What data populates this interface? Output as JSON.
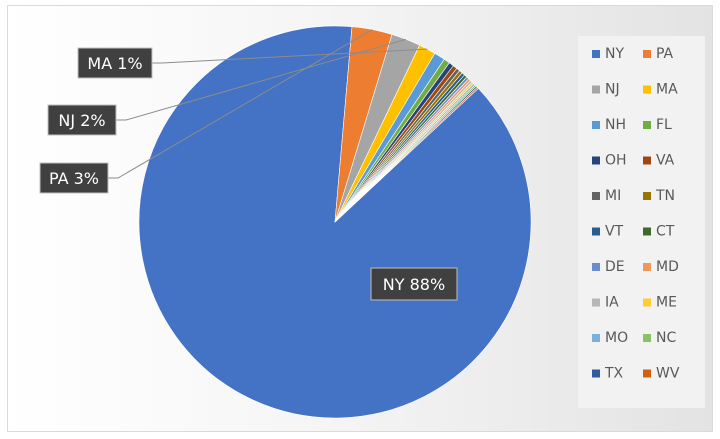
{
  "chart_data": {
    "type": "pie",
    "title": "",
    "categories": [
      "NY",
      "PA",
      "NJ",
      "MA",
      "NH",
      "FL",
      "OH",
      "VA",
      "MI",
      "TN",
      "VT",
      "CT",
      "DE",
      "MD",
      "IA",
      "ME",
      "MO",
      "NC",
      "TX",
      "WV"
    ],
    "values": [
      88.0,
      3.3,
      2.4,
      1.4,
      0.9,
      0.5,
      0.4,
      0.35,
      0.3,
      0.27,
      0.25,
      0.24,
      0.22,
      0.2,
      0.19,
      0.17,
      0.15,
      0.14,
      0.13,
      0.12
    ],
    "colors": [
      "#4472c4",
      "#ed7d31",
      "#a5a5a5",
      "#ffc000",
      "#5b9bd5",
      "#70ad47",
      "#264478",
      "#9e480e",
      "#636363",
      "#997300",
      "#255e91",
      "#43682b",
      "#698ed0",
      "#f1975a",
      "#b7b7b7",
      "#ffcd33",
      "#7cafdd",
      "#8cc168",
      "#335aa1",
      "#d26012"
    ],
    "data_labels": [
      {
        "text": "NY 88%",
        "category": "NY"
      },
      {
        "text": "PA 3%",
        "category": "PA"
      },
      {
        "text": "NJ 2%",
        "category": "NJ"
      },
      {
        "text": "MA 1%",
        "category": "MA"
      }
    ],
    "legend_placement": "right"
  }
}
